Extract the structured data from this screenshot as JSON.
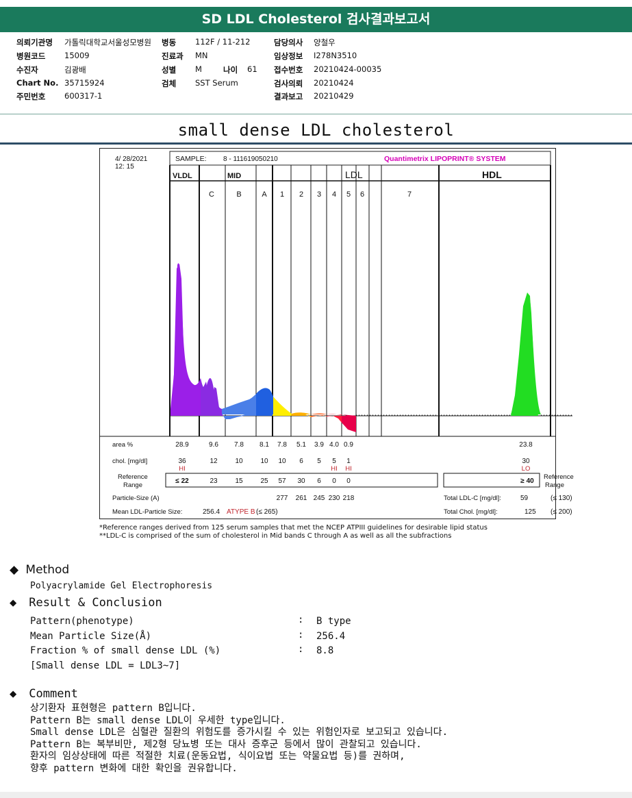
{
  "report": {
    "banner": "SD LDL Cholesterol 검사결과보고서",
    "patient_info": [
      [
        {
          "label": "의뢰기관명",
          "value": "가톨릭대학교서울성모병원"
        },
        {
          "label": "병동",
          "value": "112F / 11-212"
        },
        {
          "label": "담당의사",
          "value": "양철우"
        }
      ],
      [
        {
          "label": "병원코드",
          "value": "15009"
        },
        {
          "label": "진료과",
          "value": "MN"
        },
        {
          "label": "임상정보",
          "value": "I278N3510"
        }
      ],
      [
        {
          "label": "수진자",
          "value": "김광배"
        },
        {
          "label": "성별",
          "value": "M"
        },
        {
          "label": "나이",
          "value": "61"
        },
        {
          "label": "접수번호",
          "value": "20210424-00035"
        }
      ],
      [
        {
          "label": "Chart No.",
          "value": "35715924"
        },
        {
          "label": "검체",
          "value": "SST Serum"
        },
        {
          "label": "검사의뢰",
          "value": "20210424"
        }
      ],
      [
        {
          "label": "주민번호",
          "value": "600317-1"
        },
        {
          "label": "결과보고",
          "value": "20210429"
        }
      ]
    ],
    "section_title": "small dense LDL cholesterol"
  },
  "figure": {
    "date": "4/ 28/2021",
    "time": "12: 15",
    "sample_label": "SAMPLE:",
    "sample_id": "8 - 111619050210",
    "brand": "Quantimetrix LIPOPRINT® SYSTEM",
    "groups": [
      "VLDL",
      "MID",
      "LDL",
      "HDL"
    ],
    "bands": [
      "C",
      "B",
      "A",
      "1",
      "2",
      "3",
      "4",
      "5",
      "6",
      "7"
    ],
    "rows": {
      "area_label": "area %",
      "chol_label": "chol. [mg/dl]",
      "ref_label": "Reference Range",
      "ref_label_right": "Reference Range",
      "particle_label": "Particle-Size (A)",
      "mean_label": "Mean LDL-Particle Size:",
      "mean_value": "256.4",
      "mean_type": "ATYPE B",
      "mean_ref": "(≤ 265)",
      "total_ldl_label": "Total LDL-C [mg/dl]:",
      "total_ldl_value": "59",
      "total_ldl_ref": "(≤ 130)",
      "total_chol_label": "Total Chol. [mg/dl]:",
      "total_chol_value": "125",
      "total_chol_ref": "(≤ 200)"
    },
    "columns": [
      {
        "name": "VLDL",
        "area": "28.9",
        "chol": "36",
        "flag": "HI",
        "ref": "≤ 22",
        "size": ""
      },
      {
        "name": "C",
        "area": "9.6",
        "chol": "12",
        "flag": "",
        "ref": "23",
        "size": ""
      },
      {
        "name": "B",
        "area": "7.8",
        "chol": "10",
        "flag": "",
        "ref": "15",
        "size": ""
      },
      {
        "name": "A",
        "area": "8.1",
        "chol": "10",
        "flag": "",
        "ref": "25",
        "size": ""
      },
      {
        "name": "1",
        "area": "7.8",
        "chol": "10",
        "flag": "",
        "ref": "57",
        "size": "277"
      },
      {
        "name": "2",
        "area": "5.1",
        "chol": "6",
        "flag": "",
        "ref": "30",
        "size": "261"
      },
      {
        "name": "3",
        "area": "3.9",
        "chol": "5",
        "flag": "",
        "ref": "6",
        "size": "245"
      },
      {
        "name": "4",
        "area": "4.0",
        "chol": "5",
        "flag": "HI",
        "ref": "0",
        "size": "230"
      },
      {
        "name": "5",
        "area": "0.9",
        "chol": "1",
        "flag": "HI",
        "ref": "0",
        "size": "218"
      },
      {
        "name": "HDL",
        "area": "23.8",
        "chol": "30",
        "flag": "LO",
        "ref": "≥ 40",
        "size": ""
      }
    ],
    "footnotes": [
      "*Reference ranges derived from 125 serum samples that met the NCEP ATPIII guidelines for desirable lipid status",
      "**LDL-C is comprised of the sum of cholesterol in Mid bands C through A as well as all the subfractions"
    ],
    "colors": {
      "vldl": "#9b1fe8",
      "c": "#8a2be2",
      "b": "#4a7fe8",
      "a": "#2060e0",
      "ldl1": "#ffee00",
      "ldl2": "#ffb000",
      "ldl3": "#ff6020",
      "ldl4": "#ff1e3c",
      "ldl5": "#e8004a",
      "hdl": "#22dd22"
    }
  },
  "method": {
    "heading": "Method",
    "text": "Polyacrylamide Gel Electrophoresis"
  },
  "result": {
    "heading": "Result & Conclusion",
    "items": [
      {
        "label": "Pattern(phenotype)",
        "value": "B type"
      },
      {
        "label": "Mean Particle Size(Å)",
        "value": "256.4"
      },
      {
        "label": "Fraction % of small dense LDL (%)",
        "value": "8.8"
      }
    ],
    "note": "[Small dense LDL = LDL3~7]"
  },
  "comment": {
    "heading": "Comment",
    "lines": [
      "상기환자 표현형은 pattern B입니다.",
      "Pattern B는 small dense LDL이 우세한 type입니다.",
      "Small dense LDL은 심혈관 질환의 위험도를 증가시킬 수 있는 위험인자로 보고되고 있습니다.",
      "Pattern B는 복부비만, 제2형 당뇨병 또는 대사 증후군 등에서 많이 관찰되고 있습니다.",
      "환자의 임상상태에 따른 적절한 치료(운동요법, 식이요법 또는 약물요법 등)를 권하며,",
      "향후 pattern 변화에 대한 확인을 권유합니다."
    ]
  }
}
